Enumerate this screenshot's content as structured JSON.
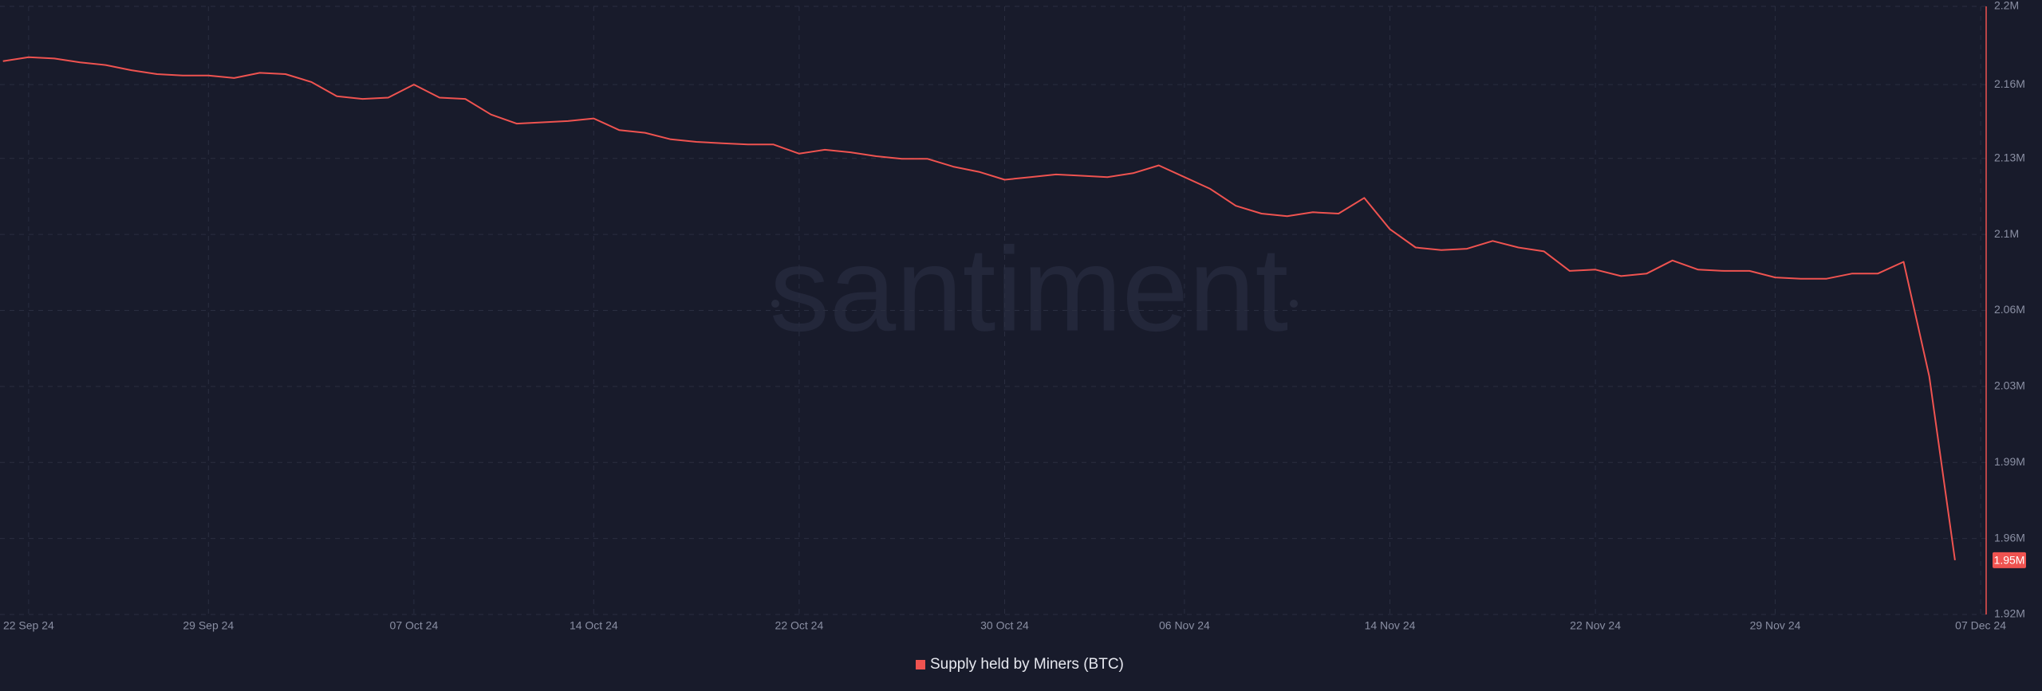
{
  "chart_data": {
    "type": "line",
    "watermark": "santiment",
    "categories": [
      null,
      "22 Sep 24",
      null,
      null,
      null,
      null,
      null,
      null,
      "29 Sep 24",
      null,
      null,
      null,
      null,
      null,
      null,
      null,
      "07 Oct 24",
      null,
      null,
      null,
      null,
      null,
      null,
      "14 Oct 24",
      null,
      null,
      null,
      null,
      null,
      null,
      null,
      "22 Oct 24",
      null,
      null,
      null,
      null,
      null,
      null,
      null,
      "30 Oct 24",
      null,
      null,
      null,
      null,
      null,
      null,
      "06 Nov 24",
      null,
      null,
      null,
      null,
      null,
      null,
      null,
      "14 Nov 24",
      null,
      null,
      null,
      null,
      null,
      null,
      null,
      "22 Nov 24",
      null,
      null,
      null,
      null,
      null,
      null,
      "29 Nov 24",
      null,
      null,
      null,
      null,
      null,
      null,
      null,
      "07 Dec 24"
    ],
    "series": [
      {
        "name": "Supply held by Miners (BTC)",
        "color": "#ef5350",
        "values": [
          2174800,
          2176600,
          2176000,
          2174200,
          2173000,
          2170600,
          2168800,
          2168200,
          2168200,
          2167000,
          2169400,
          2168800,
          2165200,
          2158600,
          2157400,
          2158000,
          2164000,
          2158000,
          2157400,
          2150200,
          2146000,
          2146600,
          2147200,
          2148400,
          2143000,
          2141800,
          2138800,
          2137600,
          2137000,
          2136400,
          2136400,
          2132200,
          2134000,
          2132800,
          2131000,
          2129800,
          2129800,
          2126200,
          2123800,
          2120200,
          2121400,
          2122600,
          2122000,
          2121400,
          2123200,
          2126800,
          2121400,
          2116000,
          2108200,
          2104600,
          2103400,
          2105200,
          2104600,
          2111800,
          2097400,
          2089000,
          2087800,
          2088400,
          2092000,
          2089000,
          2087200,
          2078200,
          2078800,
          2075800,
          2077000,
          2083000,
          2078800,
          2078200,
          2078200,
          2075200,
          2074600,
          2074600,
          2077000,
          2077000,
          2082400,
          2029600,
          1945000,
          null
        ],
        "value_labels": [
          null,
          null,
          null,
          null,
          null,
          null,
          null,
          null,
          null,
          null,
          null,
          null,
          null,
          null,
          null,
          null,
          null,
          null,
          null,
          null,
          null,
          null,
          null,
          null,
          null,
          null,
          null,
          null,
          null,
          null,
          null,
          null,
          null,
          null,
          null,
          null,
          null,
          null,
          null,
          null,
          null,
          null,
          null,
          null,
          null,
          null,
          null,
          null,
          null,
          null,
          null,
          null,
          null,
          null,
          null,
          null,
          null,
          null,
          null,
          null,
          null,
          null,
          null,
          null,
          null,
          null,
          null,
          null,
          null,
          null,
          null,
          null,
          null,
          null,
          null,
          null,
          "1.95M",
          null
        ]
      }
    ],
    "ylim": [
      1920000,
      2200000
    ],
    "yticks": [
      {
        "value": 2200000,
        "label": "2.2M"
      },
      {
        "value": 2164000,
        "label": "2.16M"
      },
      {
        "value": 2130000,
        "label": "2.13M"
      },
      {
        "value": 2095000,
        "label": "2.1M"
      },
      {
        "value": 2060000,
        "label": "2.06M"
      },
      {
        "value": 2025000,
        "label": "2.03M"
      },
      {
        "value": 1990000,
        "label": "1.99M"
      },
      {
        "value": 1955000,
        "label": "1.96M"
      },
      {
        "value": 1920000,
        "label": "1.92M"
      }
    ],
    "grid": true,
    "legend": "bottom"
  }
}
